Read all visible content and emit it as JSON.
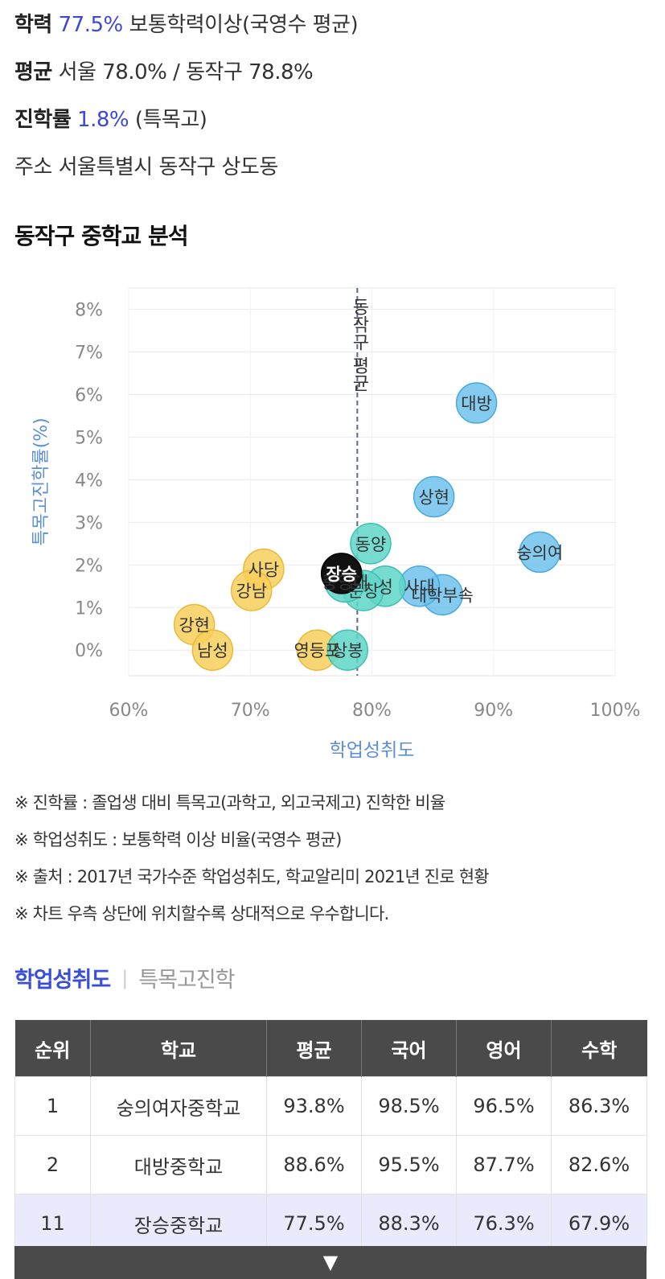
{
  "summary": {
    "achievement_label": "학력",
    "achievement_value": "77.5%",
    "achievement_desc": "보통학력이상(국영수 평균)",
    "average_label": "평균",
    "average_value": "서울 78.0% / 동작구 78.8%",
    "advance_label": "진학률",
    "advance_value": "1.8%",
    "advance_desc": "(특목고)",
    "address_label": "주소",
    "address_value": "서울특별시 동작구 상도동"
  },
  "section_title": "동작구 중학교 분석",
  "chart_data": {
    "type": "scatter",
    "xlabel": "학업성취도",
    "ylabel": "특목고진학률(%)",
    "xlim": [
      60,
      100
    ],
    "ylim": [
      -0.6,
      8.5
    ],
    "xticks": [
      "60%",
      "70%",
      "80%",
      "90%",
      "100%"
    ],
    "yticks": [
      "0%",
      "1%",
      "2%",
      "3%",
      "4%",
      "5%",
      "6%",
      "7%",
      "8%"
    ],
    "reference_line": {
      "x": 78.8,
      "label": "동작구 평균"
    },
    "grid": true,
    "colors": {
      "yellow": "#f7cf5b",
      "teal": "#5fd6c8",
      "blue": "#6ec2ec",
      "black": "#111111",
      "axis_label": "#5b8fd9"
    },
    "points": [
      {
        "name": "대방",
        "x": 88.6,
        "y": 5.8,
        "color": "blue"
      },
      {
        "name": "상현",
        "x": 85.1,
        "y": 3.6,
        "color": "blue"
      },
      {
        "name": "숭의여",
        "x": 93.8,
        "y": 2.3,
        "color": "blue"
      },
      {
        "name": "동양",
        "x": 79.9,
        "y": 2.5,
        "color": "teal"
      },
      {
        "name": "대학부속",
        "x": 85.8,
        "y": 1.3,
        "color": "blue"
      },
      {
        "name": "사대",
        "x": 83.9,
        "y": 1.5,
        "color": "blue"
      },
      {
        "name": "성",
        "x": 81.1,
        "y": 1.5,
        "color": "teal"
      },
      {
        "name": "문창",
        "x": 79.3,
        "y": 1.4,
        "color": "teal"
      },
      {
        "name": "중앙대",
        "x": 77.8,
        "y": 1.6,
        "color": "teal"
      },
      {
        "name": "장승",
        "x": 77.5,
        "y": 1.8,
        "color": "black"
      },
      {
        "name": "사당",
        "x": 71.1,
        "y": 1.9,
        "color": "yellow"
      },
      {
        "name": "강남",
        "x": 70.1,
        "y": 1.4,
        "color": "yellow"
      },
      {
        "name": "강현",
        "x": 65.4,
        "y": 0.6,
        "color": "yellow"
      },
      {
        "name": "남성",
        "x": 66.9,
        "y": 0.0,
        "color": "yellow"
      },
      {
        "name": "영등포",
        "x": 75.5,
        "y": 0.0,
        "color": "yellow"
      },
      {
        "name": "상봉",
        "x": 78.0,
        "y": 0.0,
        "color": "teal"
      }
    ]
  },
  "notes": [
    "※ 진학률 : 졸업생 대비 특목고(과학고, 외고국제고) 진학한 비율",
    "※ 학업성취도 : 보통학력 이상 비율(국영수 평균)",
    "※ 출처 : 2017년 국가수준 학업성취도, 학교알리미 2021년 진로 현황",
    "※ 차트 우측 상단에 위치할수록 상대적으로 우수합니다."
  ],
  "tabs": {
    "active": "학업성취도",
    "separator": "|",
    "inactive": "특목고진학"
  },
  "table": {
    "headers": [
      "순위",
      "학교",
      "평균",
      "국어",
      "영어",
      "수학"
    ],
    "rows": [
      [
        "1",
        "숭의여자중학교",
        "93.8%",
        "98.5%",
        "96.5%",
        "86.3%"
      ],
      [
        "2",
        "대방중학교",
        "88.6%",
        "95.5%",
        "87.7%",
        "82.6%"
      ],
      [
        "11",
        "장승중학교",
        "77.5%",
        "88.3%",
        "76.3%",
        "67.9%"
      ]
    ]
  },
  "more_button": {
    "icon": "▼",
    "icon_name": "chevron-down-icon"
  }
}
